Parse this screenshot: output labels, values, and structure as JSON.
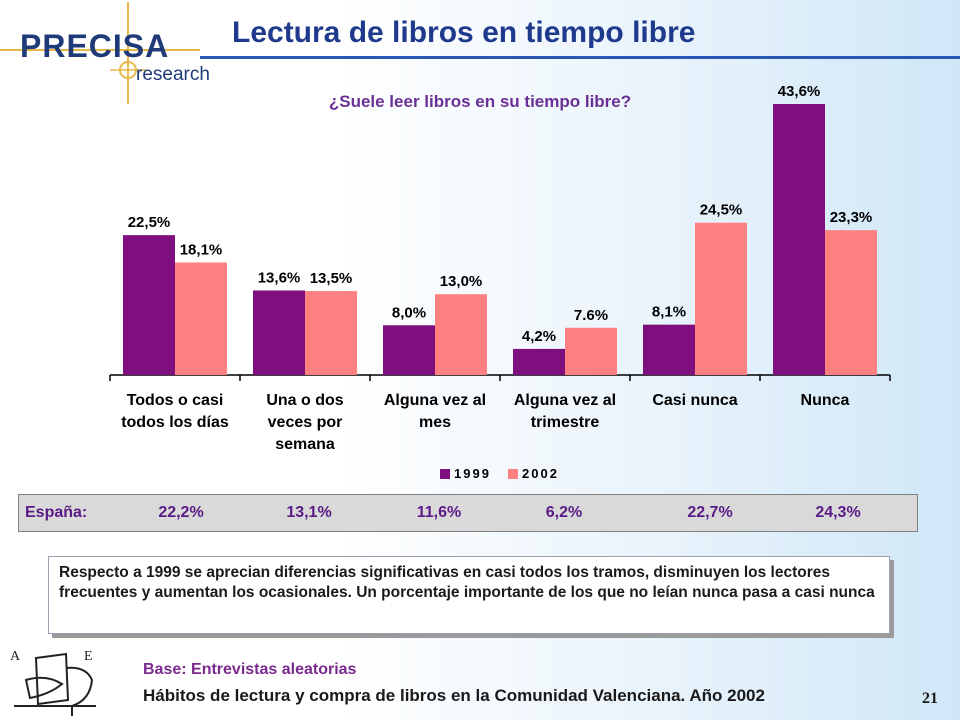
{
  "logo": {
    "word": "PRECISA",
    "sub": "research"
  },
  "title": "Lectura de libros en tiempo libre",
  "chart_data": {
    "type": "bar",
    "title": "¿Suele leer libros en su tiempo libre?",
    "categories": [
      [
        "Todos o casi",
        "todos los días"
      ],
      [
        "Una o dos",
        "veces por",
        "semana"
      ],
      [
        "Alguna vez al",
        "mes"
      ],
      [
        "Alguna vez al",
        "trimestre"
      ],
      [
        "Casi nunca"
      ],
      [
        "Nunca"
      ]
    ],
    "series": [
      {
        "name": "1999",
        "values": [
          22.5,
          13.6,
          8.0,
          4.2,
          8.1,
          43.6
        ],
        "labels": [
          "22,5%",
          "13,6%",
          "8,0%",
          "4,2%",
          "8,1%",
          "43,6%"
        ],
        "color": "#7f0f7e"
      },
      {
        "name": "2002",
        "values": [
          18.1,
          13.5,
          13.0,
          7.6,
          24.5,
          23.3
        ],
        "labels": [
          "18,1%",
          "13,5%",
          "13,0%",
          "7.6%",
          "24,5%",
          "23,3%"
        ],
        "color": "#ff8080"
      }
    ],
    "ylim": [
      0,
      46
    ],
    "legend": "bottom-center",
    "grid": false
  },
  "spain": {
    "label": "España:",
    "values": [
      "22,2%",
      "13,1%",
      "11,6%",
      "6,2%",
      "22,7%",
      "24,3%"
    ]
  },
  "note": "Respecto a 1999 se aprecian diferencias significativas en casi todos los tramos, disminuyen los lectores frecuentes y aumentan los ocasionales. Un porcentaje importante de los que no leían nunca pasa a casi nunca",
  "base": "Base: Entrevistas aleatorias",
  "source": "Hábitos de lectura y compra de libros en la Comunidad Valenciana. Año 2002",
  "page_number": "21",
  "ae_logo": {
    "left": "A",
    "right": "E"
  }
}
